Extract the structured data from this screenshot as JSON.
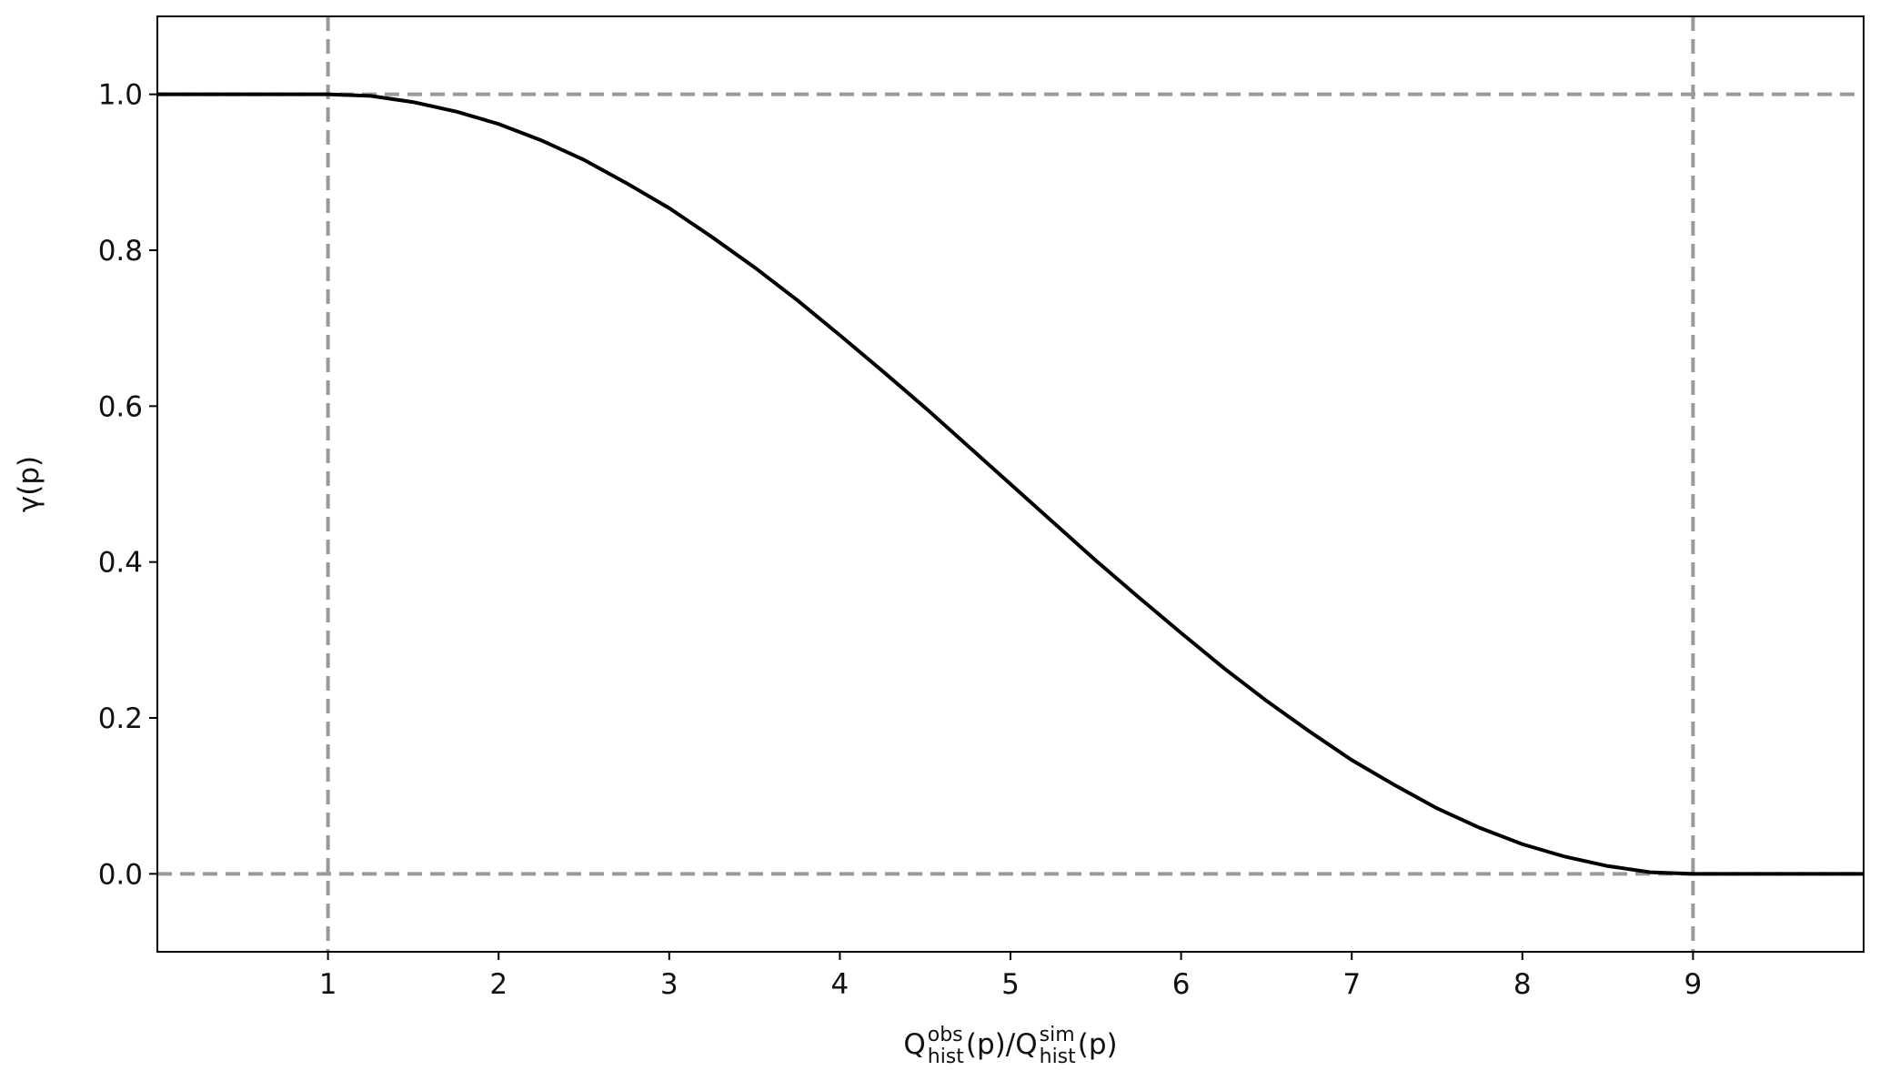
{
  "chart_data": {
    "type": "line",
    "xlabel": [
      {
        "text": "Q"
      },
      {
        "sup": "obs",
        "sub": "hist"
      },
      {
        "text": "(p)/Q"
      },
      {
        "sup": "sim",
        "sub": "hist"
      },
      {
        "text": "(p)"
      }
    ],
    "ylabel": "γ(p)",
    "x": [
      0,
      0.25,
      0.5,
      0.75,
      1,
      1.25,
      1.5,
      1.75,
      2,
      2.25,
      2.5,
      2.75,
      3,
      3.25,
      3.5,
      3.75,
      4,
      4.25,
      4.5,
      4.75,
      5,
      5.25,
      5.5,
      5.75,
      6,
      6.25,
      6.5,
      6.75,
      7,
      7.25,
      7.5,
      7.75,
      8,
      8.25,
      8.5,
      8.75,
      9,
      9.25,
      9.5,
      9.75,
      10
    ],
    "series": [
      {
        "color": "#000000",
        "values": [
          1,
          1,
          1,
          1,
          1,
          0.998,
          0.99,
          0.978,
          0.962,
          0.941,
          0.916,
          0.886,
          0.854,
          0.817,
          0.778,
          0.736,
          0.691,
          0.645,
          0.598,
          0.549,
          0.5,
          0.451,
          0.402,
          0.355,
          0.309,
          0.264,
          0.222,
          0.183,
          0.146,
          0.114,
          0.084,
          0.059,
          0.038,
          0.022,
          0.01,
          0.002,
          0,
          0,
          0,
          0,
          0
        ]
      }
    ],
    "xlim": [
      0,
      10
    ],
    "ylim": [
      -0.1,
      1.1
    ],
    "xticks": [
      1,
      2,
      3,
      4,
      5,
      6,
      7,
      8,
      9
    ],
    "yticks": [
      {
        "value": 0,
        "label": "0.0"
      },
      0.2,
      0.4,
      0.6,
      0.8,
      {
        "value": 1,
        "label": "1.0"
      }
    ],
    "hlines": [
      0,
      1
    ],
    "vlines": [
      1,
      9
    ],
    "refline_color": "#999999",
    "grid": false
  }
}
